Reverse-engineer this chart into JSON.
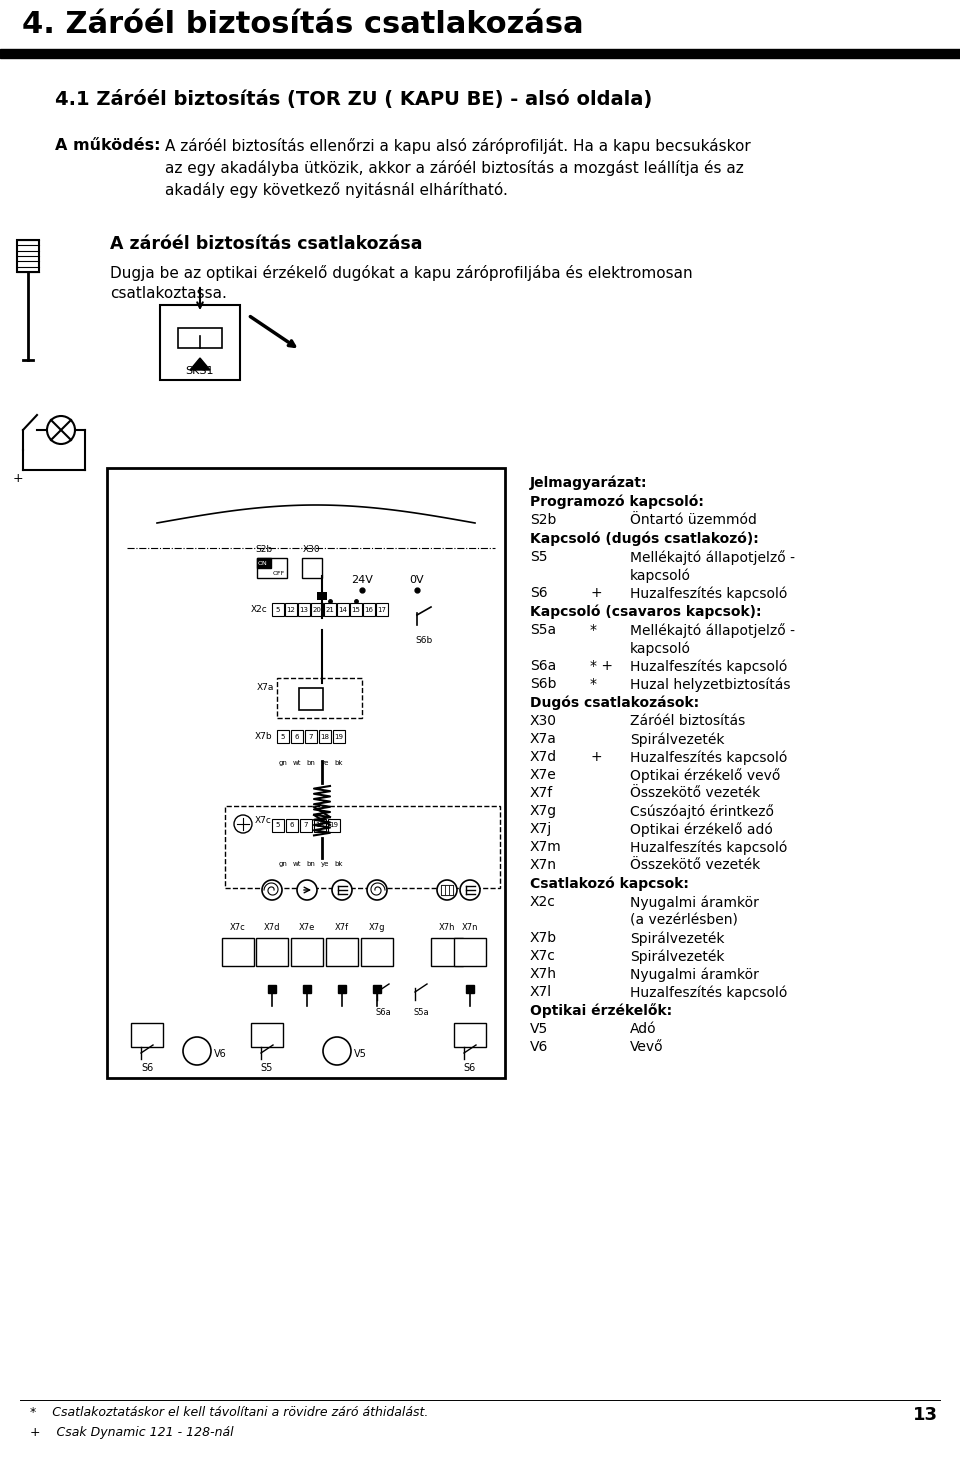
{
  "title": "4. Záróél biztosítás csatlakozása",
  "subtitle": "4.1 Záróél biztosítás (TOR ZU ( KAPU BE) - alsó oldala)",
  "mukodes_label": "A működés:",
  "section_title": "A záróél biztosítás csatlakozása",
  "section_line1": "Dugja be az optikai érzékelő dugókat a kapu záróprofiljába és elektromosan",
  "section_line2": "csatlakoztassa.",
  "legend_title": "Jelmagyarázat:",
  "legend_items": [
    {
      "key": "Programozó kapcsoló:",
      "mod": "",
      "val": "",
      "bold": true
    },
    {
      "key": "S2b",
      "mod": "",
      "val": "Öntartó üzemmód",
      "bold": false
    },
    {
      "key": "Kapcsoló (dugós csatlakozó):",
      "mod": "",
      "val": "",
      "bold": true
    },
    {
      "key": "S5",
      "mod": "",
      "val": "Mellékajtó állapotjelző -",
      "val2": "kapcsoló",
      "bold": false
    },
    {
      "key": "S6",
      "mod": "+",
      "val": "Huzalfeszítés kapcsoló",
      "bold": false
    },
    {
      "key": "Kapcsoló (csavaros kapcsok):",
      "mod": "",
      "val": "",
      "bold": true
    },
    {
      "key": "S5a",
      "mod": "*",
      "val": "Mellékajtó állapotjelző -",
      "val2": "kapcsoló",
      "bold": false
    },
    {
      "key": "S6a",
      "mod": "* +",
      "val": "Huzalfeszítés kapcsoló",
      "bold": false
    },
    {
      "key": "S6b",
      "mod": "*",
      "val": "Huzal helyzetbiztosítás",
      "bold": false
    },
    {
      "key": "Dugós csatlakozások:",
      "mod": "",
      "val": "",
      "bold": true
    },
    {
      "key": "X30",
      "mod": "",
      "val": "Záróél biztosítás",
      "bold": false
    },
    {
      "key": "X7a",
      "mod": "",
      "val": "Spirálvezeték",
      "bold": false
    },
    {
      "key": "X7d",
      "mod": "+",
      "val": "Huzalfeszítés kapcsoló",
      "bold": false
    },
    {
      "key": "X7e",
      "mod": "",
      "val": "Optikai érzékelő vevő",
      "bold": false
    },
    {
      "key": "X7f",
      "mod": "",
      "val": "Összekötő vezeték",
      "bold": false
    },
    {
      "key": "X7g",
      "mod": "",
      "val": "Csúszóajtó érintkező",
      "bold": false
    },
    {
      "key": "X7j",
      "mod": "",
      "val": "Optikai érzékelő adó",
      "bold": false
    },
    {
      "key": "X7m",
      "mod": "",
      "val": "Huzalfeszítés kapcsoló",
      "bold": false
    },
    {
      "key": "X7n",
      "mod": "",
      "val": "Összekötő vezeték",
      "bold": false
    },
    {
      "key": "Csatlakozó kapcsok:",
      "mod": "",
      "val": "",
      "bold": true
    },
    {
      "key": "X2c",
      "mod": "",
      "val": "Nyugalmi áramkör",
      "val2": "(a vezérlésben)",
      "bold": false
    },
    {
      "key": "X7b",
      "mod": "",
      "val": "Spirálvezeték",
      "bold": false
    },
    {
      "key": "X7c",
      "mod": "",
      "val": "Spirálvezeték",
      "bold": false
    },
    {
      "key": "X7h",
      "mod": "",
      "val": "Nyugalmi áramkör",
      "bold": false
    },
    {
      "key": "X7l",
      "mod": "",
      "val": "Huzalfeszítés kapcsoló",
      "bold": false
    },
    {
      "key": "Optikai érzékelők:",
      "mod": "",
      "val": "",
      "bold": true
    },
    {
      "key": "V5",
      "mod": "",
      "val": "Adó",
      "bold": false
    },
    {
      "key": "V6",
      "mod": "",
      "val": "Vevő",
      "bold": false
    }
  ],
  "footer_star": "*    Csatlakoztatáskor el kell távolítani a rövidre záró áthidalást.",
  "footer_plus": "+    Csak Dynamic 121 - 128-nál",
  "page_number": "13"
}
